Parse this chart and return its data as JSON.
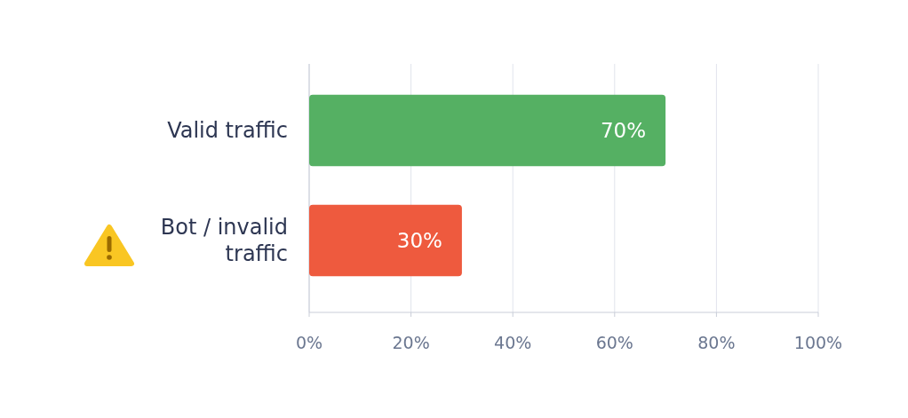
{
  "chart_data": {
    "type": "bar",
    "orientation": "horizontal",
    "categories": [
      "Valid traffic",
      "Bot / invalid traffic"
    ],
    "values": [
      70,
      30
    ],
    "colors": [
      "#55b063",
      "#ee5a3e"
    ],
    "data_labels": true,
    "value_labels": [
      "70%",
      "30%"
    ],
    "xlim": [
      0,
      100
    ],
    "xticks": [
      {
        "value": 0,
        "label": "0%"
      },
      {
        "value": 20,
        "label": "20%"
      },
      {
        "value": 40,
        "label": "40%"
      },
      {
        "value": 60,
        "label": "60%"
      },
      {
        "value": 80,
        "label": "80%"
      },
      {
        "value": 100,
        "label": "100%"
      }
    ],
    "grid": "x"
  }
}
